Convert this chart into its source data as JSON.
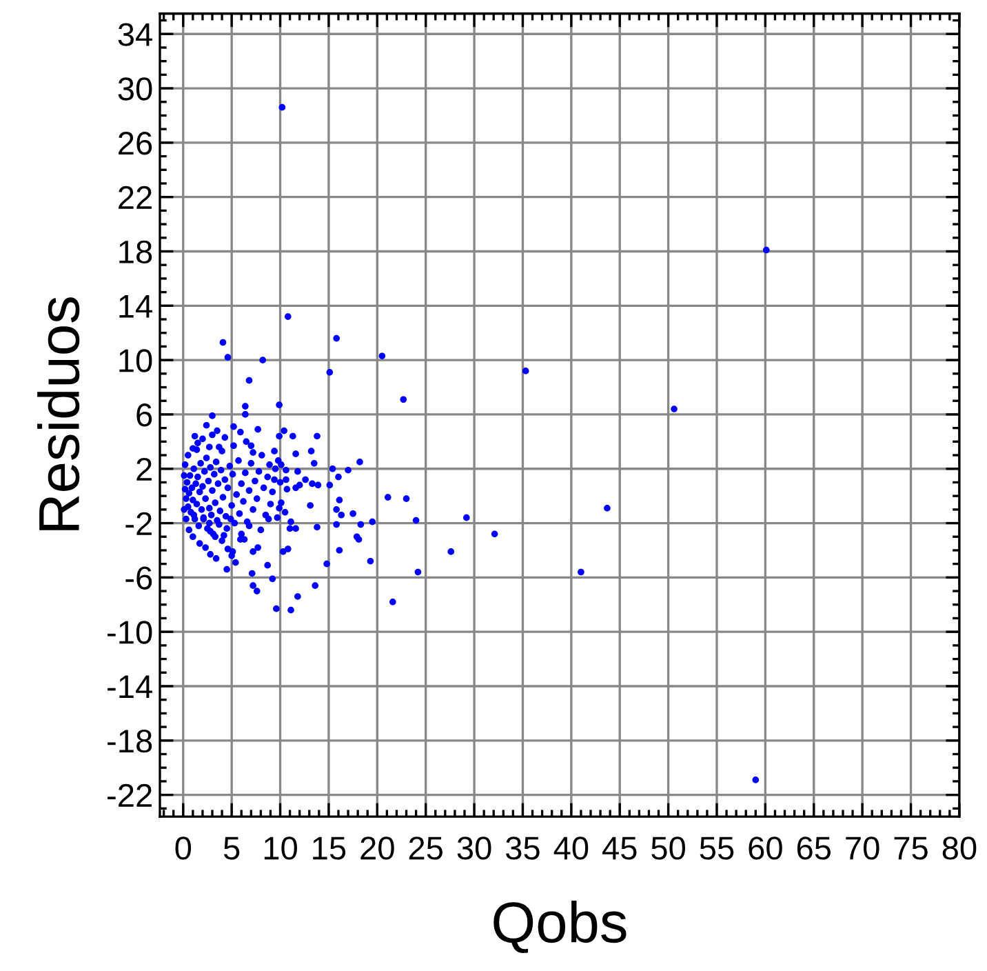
{
  "chart_data": {
    "type": "scatter",
    "xlabel": "Qobs",
    "ylabel": "Residuos",
    "xlim": [
      -2.4,
      80
    ],
    "ylim": [
      -23.6,
      35.5
    ],
    "xticks": [
      0,
      5,
      10,
      15,
      20,
      25,
      30,
      35,
      40,
      45,
      50,
      55,
      60,
      65,
      70,
      75,
      80
    ],
    "yticks": [
      -22,
      -18,
      -14,
      -10,
      -6,
      -2,
      2,
      6,
      10,
      14,
      18,
      22,
      26,
      30,
      34
    ],
    "grid": true,
    "marker": "circle",
    "series": [
      {
        "color": "#0000ff",
        "x": [
          10.2,
          60.1,
          59.0,
          35.3,
          50.6,
          43.7,
          24.0,
          24.2,
          27.6,
          29.2,
          32.1,
          41.0,
          10.8,
          4.1,
          4.6,
          15.8,
          8.2,
          20.5,
          15.1,
          6.8,
          22.7,
          6.4,
          6.4,
          9.9,
          3.0,
          2.4,
          5.2,
          7.7,
          10.4,
          11.3,
          13.8,
          9.9,
          1.2,
          1.4,
          3.5,
          4.3,
          5.9,
          6.5,
          2.7,
          4.0,
          5.2,
          7.0,
          7.2,
          8.1,
          9.4,
          11.6,
          13.2,
          13.5,
          9.8,
          8.9,
          10.1,
          18.2,
          15.4,
          17.0,
          16.0,
          12.6,
          10.6,
          11.8,
          13.3,
          13.9,
          15.1,
          12.0,
          10.6,
          9.4,
          10.7,
          11.6,
          13.1,
          16.1,
          21.1,
          23.0,
          15.8,
          16.3,
          17.5,
          15.8,
          18.3,
          19.5,
          13.8,
          17.9,
          18.1,
          16.1,
          19.3,
          14.8,
          13.6,
          21.6,
          11.8,
          9.2,
          9.6,
          11.1,
          7.6,
          7.2,
          7.1,
          8.7,
          5.4,
          7.2,
          7.7,
          10.3,
          10.8,
          5.1,
          4.6,
          11.6,
          11.0,
          11.1,
          9.9,
          10.5,
          10.1,
          8.8,
          6.8,
          6.0,
          6.3,
          3.7,
          4.5,
          4.9,
          2.8,
          3.3,
          4.0,
          5.9,
          2.7,
          2.1,
          1.1,
          0.2,
          0.3,
          0.4,
          0.5,
          0.6,
          0.7,
          0.8,
          0.9,
          1.0,
          1.1,
          1.2,
          1.3,
          1.4,
          1.5,
          1.6,
          1.7,
          1.8,
          1.9,
          2.0,
          2.1,
          2.2,
          2.3,
          2.4,
          2.5,
          2.6,
          2.7,
          2.8,
          2.9,
          3.0,
          3.1,
          3.2,
          3.3,
          3.4,
          3.5,
          3.6,
          3.8,
          3.9,
          4.1,
          4.2,
          4.3,
          4.4,
          4.6,
          4.8,
          5.0,
          5.1,
          5.3,
          5.5,
          5.7,
          5.8,
          6.0,
          6.2,
          6.4,
          6.6,
          6.8,
          7.0,
          7.2,
          7.4,
          7.6,
          7.8,
          8.0,
          8.3,
          8.5,
          8.7,
          9.0,
          9.2,
          9.5,
          9.7,
          10.0,
          0.1,
          0.1,
          0.2,
          0.3,
          0.5,
          0.6,
          1.0,
          1.0,
          1.5,
          1.7,
          2.0,
          2.3,
          2.8,
          3.0,
          3.4,
          3.7,
          4.5,
          5.0
        ],
        "values": [
          28.6,
          18.1,
          -20.9,
          9.2,
          6.4,
          -0.9,
          -1.8,
          -5.6,
          -4.1,
          -1.6,
          -2.8,
          -5.6,
          13.2,
          11.3,
          10.2,
          11.6,
          10.0,
          10.3,
          9.1,
          8.5,
          7.1,
          6.6,
          6.0,
          6.7,
          5.9,
          5.2,
          5.1,
          4.9,
          4.8,
          4.4,
          4.4,
          4.4,
          4.4,
          3.4,
          4.8,
          4.3,
          4.7,
          4.0,
          3.6,
          3.3,
          3.7,
          3.7,
          3.2,
          3.0,
          3.3,
          3.1,
          3.3,
          2.4,
          2.6,
          2.3,
          2.3,
          2.5,
          2.0,
          1.9,
          1.4,
          1.2,
          1.9,
          1.8,
          0.9,
          0.8,
          0.8,
          0.8,
          1.2,
          1.2,
          0.5,
          0.6,
          -0.7,
          -0.3,
          -0.1,
          -0.2,
          -1.0,
          -1.4,
          -1.3,
          -2.1,
          -2.1,
          -1.9,
          -2.3,
          -3.0,
          -3.2,
          -4.0,
          -4.8,
          -5.0,
          -6.6,
          -7.8,
          -7.4,
          -6.1,
          -8.3,
          -8.4,
          -7.0,
          -6.6,
          -5.7,
          -5.1,
          -4.9,
          -4.1,
          -3.8,
          -4.1,
          -3.9,
          -4.1,
          -3.9,
          -2.4,
          -2.4,
          -1.9,
          -0.9,
          -1.2,
          -0.5,
          -1.7,
          -2.2,
          -2.8,
          -3.2,
          -2.1,
          -2.4,
          -1.7,
          -2.6,
          -3.0,
          -3.3,
          -3.2,
          -2.0,
          -1.7,
          -1.4,
          0.5,
          -0.2,
          1.0,
          -0.8,
          0.2,
          1.5,
          -1.2,
          0.6,
          -0.3,
          2.0,
          -1.7,
          0.9,
          -0.6,
          1.4,
          -2.2,
          0.3,
          2.4,
          -1.0,
          0.7,
          -1.6,
          1.8,
          -0.2,
          2.8,
          -2.4,
          1.1,
          -0.9,
          2.1,
          -1.4,
          0.4,
          -2.8,
          1.6,
          -0.5,
          2.5,
          -1.8,
          0.9,
          -1.1,
          1.9,
          -0.1,
          -2.9,
          1.2,
          -1.5,
          0.6,
          2.2,
          -0.7,
          1.6,
          -2.0,
          0.1,
          2.6,
          -1.3,
          0.9,
          -0.4,
          1.7,
          -1.9,
          0.4,
          2.4,
          -1.0,
          1.1,
          -0.2,
          1.8,
          -2.5,
          0.6,
          -1.4,
          1.4,
          -0.6,
          0.3,
          2.0,
          -1.6,
          1.0,
          1.5,
          -1.0,
          2.3,
          -1.7,
          3.0,
          -2.5,
          3.5,
          -3.0,
          3.9,
          -3.5,
          4.2,
          -3.8,
          -4.3,
          4.5,
          -4.6,
          3.6,
          -5.4,
          -4.4
        ]
      }
    ]
  }
}
